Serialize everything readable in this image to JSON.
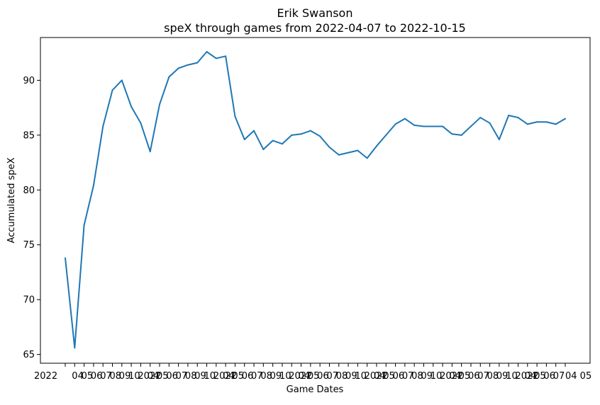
{
  "chart_data": {
    "type": "line",
    "title": "Erik Swanson",
    "subtitle": "speX through games from 2022-04-07 to 2022-10-15",
    "xlabel": "Game Dates",
    "ylabel": "Accumulated speX",
    "ylim": [
      64.2,
      93.9
    ],
    "yticks": [
      65,
      70,
      75,
      80,
      85,
      90
    ],
    "x_tick_labels_note": "dense overlapping date tick labels, illegible except the first and last fragments",
    "x_first_tick_fragment": "2022",
    "x_last_tick_fragment": "04 05",
    "grid": false,
    "legend": "none",
    "line_color": "#1f77b4",
    "series": [
      {
        "values": [
          73.8,
          65.6,
          76.8,
          80.4,
          85.8,
          89.1,
          90.0,
          87.6,
          86.1,
          83.5,
          87.8,
          90.3,
          91.1,
          91.4,
          91.6,
          92.6,
          92.0,
          92.2,
          86.7,
          84.6,
          85.4,
          83.7,
          84.5,
          84.2,
          85.0,
          85.1,
          85.4,
          84.9,
          83.9,
          83.2,
          83.4,
          83.6,
          82.9,
          84.0,
          85.0,
          86.0,
          86.5,
          85.9,
          85.8,
          85.8,
          85.8,
          85.1,
          85.0,
          85.8,
          86.6,
          86.1,
          84.6,
          86.8,
          86.6,
          86.0,
          86.2,
          86.2,
          86.0,
          86.5
        ]
      }
    ]
  }
}
